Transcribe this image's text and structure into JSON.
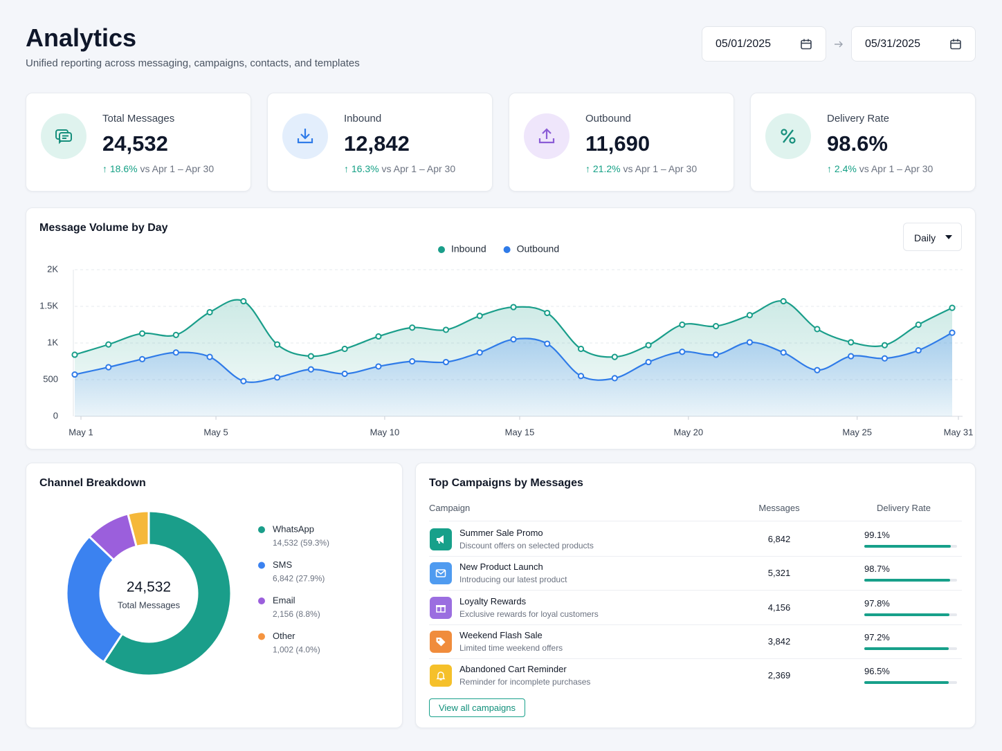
{
  "header": {
    "title": "Analytics",
    "subtitle": "Unified reporting across messaging, campaigns, contacts, and templates"
  },
  "date_range": {
    "start": "05/01/2025",
    "end": "05/31/2025"
  },
  "kpis": [
    {
      "label": "Total Messages",
      "value": "24,532",
      "change": "18.6%",
      "comparison": "vs Apr 1 – Apr 30"
    },
    {
      "label": "Inbound",
      "value": "12,842",
      "change": "16.3%",
      "comparison": "vs Apr 1 – Apr 30"
    },
    {
      "label": "Outbound",
      "value": "11,690",
      "change": "21.2%",
      "comparison": "vs Apr 1 – Apr 30"
    },
    {
      "label": "Delivery Rate",
      "value": "98.6%",
      "change": "2.4%",
      "comparison": "vs Apr 1 – Apr 30"
    }
  ],
  "chart_data": [
    {
      "type": "line",
      "title": "Message Volume by Day",
      "interval": "Daily",
      "categories": [
        "May 1",
        null,
        null,
        null,
        "May 5",
        null,
        null,
        null,
        null,
        "May 10",
        null,
        null,
        null,
        "May 15",
        null,
        null,
        null,
        null,
        "May 20",
        null,
        null,
        null,
        null,
        "May 25",
        null,
        null,
        "May 31"
      ],
      "series": [
        {
          "name": "Inbound",
          "color": "#1a9e8a",
          "values": [
            840,
            980,
            1130,
            1110,
            1420,
            1570,
            980,
            820,
            920,
            1090,
            1210,
            1180,
            1370,
            1490,
            1410,
            920,
            810,
            970,
            1250,
            1230,
            1380,
            1570,
            1190,
            1010,
            970,
            1250,
            1480
          ]
        },
        {
          "name": "Outbound",
          "color": "#2f7be8",
          "values": [
            570,
            670,
            780,
            870,
            810,
            480,
            530,
            640,
            580,
            680,
            750,
            740,
            870,
            1050,
            990,
            550,
            520,
            740,
            880,
            840,
            1010,
            870,
            630,
            820,
            790,
            900,
            1140
          ]
        }
      ],
      "ylim": [
        0,
        2000
      ],
      "yticks": [
        0,
        500,
        {
          "value": 1000,
          "label": "1K"
        },
        {
          "value": 1500,
          "label": "1.5K"
        },
        {
          "value": 2000,
          "label": "2K"
        }
      ],
      "grid": true,
      "legend": "top"
    },
    {
      "type": "donut",
      "title": "Channel Breakdown",
      "center_value": "24,532",
      "center_label": "Total Messages",
      "categories": [
        "WhatsApp",
        "SMS",
        "Email",
        "Other"
      ],
      "values": [
        14532,
        6842,
        2156,
        1002
      ],
      "value_labels": [
        "14,532 (59.3%)",
        "6,842 (27.9%)",
        "2,156 (8.8%)",
        "1,002 (4.0%)"
      ],
      "colors": [
        "#1a9e8a",
        "#3b82f0",
        "#9b5fdc",
        "#f5b83a"
      ],
      "legend_colors": [
        "#1a9e8a",
        "#3b82f0",
        "#9b5fdc",
        "#f59440"
      ],
      "legend": "right"
    }
  ],
  "table": {
    "title": "Top Campaigns by Messages",
    "columns": [
      "Campaign",
      "Messages",
      "Delivery Rate"
    ],
    "rows": [
      {
        "name": "Summer Sale Promo",
        "description": "Discount offers on selected products",
        "messages": "6,842",
        "rate": 99.1,
        "rate_label": "99.1%",
        "color": "#17a08a"
      },
      {
        "name": "New Product Launch",
        "description": "Introducing our latest product",
        "messages": "5,321",
        "rate": 98.7,
        "rate_label": "98.7%",
        "color": "#4f9bf0"
      },
      {
        "name": "Loyalty Rewards",
        "description": "Exclusive rewards for loyal customers",
        "messages": "4,156",
        "rate": 97.8,
        "rate_label": "97.8%",
        "color": "#9b6ee0"
      },
      {
        "name": "Weekend Flash Sale",
        "description": "Limited time weekend offers",
        "messages": "3,842",
        "rate": 97.2,
        "rate_label": "97.2%",
        "color": "#f08c3c"
      },
      {
        "name": "Abandoned Cart Reminder",
        "description": "Reminder for incomplete purchases",
        "messages": "2,369",
        "rate": 96.5,
        "rate_label": "96.5%",
        "color": "#f5c02a"
      }
    ],
    "action": "View all campaigns"
  }
}
